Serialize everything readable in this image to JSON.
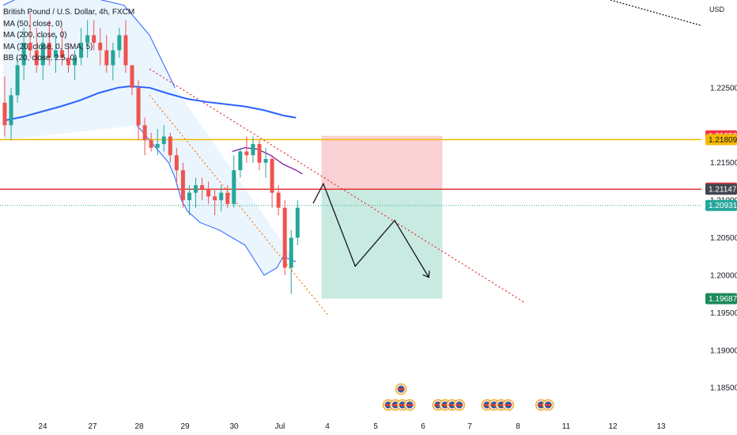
{
  "legend": {
    "symbol": "British Pound / U.S. Dollar, 4h, FXCM",
    "ma50": "MA (50, close, 0)",
    "ma200": "MA (200, close, 0)",
    "ma20": "MA (20, close, 0, SMA, 5)",
    "bb": "BB (20, close, 2.5, 0)"
  },
  "colors": {
    "up": "#26a69a",
    "down": "#ef5350",
    "ma200": "#2962ff",
    "bb": "#2962ff",
    "ma20": "#7b1fa2",
    "resistance": "#f5b800",
    "entry": "#e53935",
    "trend_red": "#e53935",
    "trend_orange": "#ff7f0e",
    "stop_zone": "#f8c9cd",
    "target_zone": "#bfe6dc"
  },
  "chart_data": {
    "type": "candlestick",
    "currency": "USD",
    "ylim": [
      1.1808,
      1.2367
    ],
    "y_ticks": [
      "1.22500",
      "1.21500",
      "1.21000",
      "1.20500",
      "1.20000",
      "1.19500",
      "1.19000",
      "1.18500"
    ],
    "x_ticks": [
      "24",
      "27",
      "28",
      "29",
      "30",
      "Jul",
      "4",
      "5",
      "6",
      "7",
      "8",
      "11",
      "12",
      "13"
    ],
    "price_tags": [
      {
        "label": "1.21859",
        "value": 1.21859,
        "color": "#f23645"
      },
      {
        "label": "1.21809",
        "value": 1.21809,
        "color": "#f5b800"
      },
      {
        "label": "1.21163",
        "value": 1.21163,
        "color": "#f23645"
      },
      {
        "label": "1.21147",
        "value": 1.21147,
        "color": "#434651"
      },
      {
        "label": "1.20931",
        "value": 1.20931,
        "color": "#26a69a"
      },
      {
        "label": "1.19687",
        "value": 1.19687,
        "color": "#1b8a5a"
      }
    ],
    "candles": [
      [
        1.223,
        1.2265,
        1.2185,
        1.22
      ],
      [
        1.22,
        1.225,
        1.218,
        1.224
      ],
      [
        1.224,
        1.229,
        1.223,
        1.228
      ],
      [
        1.228,
        1.233,
        1.226,
        1.231
      ],
      [
        1.231,
        1.235,
        1.229,
        1.23
      ],
      [
        1.23,
        1.233,
        1.227,
        1.228
      ],
      [
        1.228,
        1.232,
        1.226,
        1.231
      ],
      [
        1.231,
        1.234,
        1.228,
        1.229
      ],
      [
        1.229,
        1.232,
        1.227,
        1.23
      ],
      [
        1.23,
        1.233,
        1.228,
        1.229
      ],
      [
        1.229,
        1.231,
        1.227,
        1.228
      ],
      [
        1.228,
        1.23,
        1.226,
        1.229
      ],
      [
        1.229,
        1.233,
        1.228,
        1.231
      ],
      [
        1.231,
        1.234,
        1.229,
        1.232
      ],
      [
        1.232,
        1.234,
        1.23,
        1.231
      ],
      [
        1.231,
        1.233,
        1.228,
        1.23
      ],
      [
        1.23,
        1.232,
        1.227,
        1.228
      ],
      [
        1.228,
        1.231,
        1.226,
        1.23
      ],
      [
        1.23,
        1.233,
        1.229,
        1.232
      ],
      [
        1.232,
        1.234,
        1.227,
        1.228
      ],
      [
        1.228,
        1.228,
        1.224,
        1.225
      ],
      [
        1.225,
        1.226,
        1.218,
        1.22
      ],
      [
        1.22,
        1.221,
        1.216,
        1.218
      ],
      [
        1.218,
        1.219,
        1.2165,
        1.217
      ],
      [
        1.217,
        1.2195,
        1.216,
        1.2175
      ],
      [
        1.2175,
        1.22,
        1.2165,
        1.2185
      ],
      [
        1.2185,
        1.219,
        1.215,
        1.216
      ],
      [
        1.216,
        1.217,
        1.212,
        1.214
      ],
      [
        1.214,
        1.215,
        1.209,
        1.21
      ],
      [
        1.21,
        1.212,
        1.208,
        1.211
      ],
      [
        1.211,
        1.213,
        1.209,
        1.212
      ],
      [
        1.212,
        1.213,
        1.21,
        1.2115
      ],
      [
        1.2115,
        1.2125,
        1.2095,
        1.2105
      ],
      [
        1.2105,
        1.2115,
        1.208,
        1.21
      ],
      [
        1.21,
        1.212,
        1.2085,
        1.211
      ],
      [
        1.211,
        1.212,
        1.209,
        1.2095
      ],
      [
        1.2095,
        1.216,
        1.209,
        1.214
      ],
      [
        1.214,
        1.217,
        1.213,
        1.2165
      ],
      [
        1.2165,
        1.2185,
        1.215,
        1.216
      ],
      [
        1.216,
        1.2185,
        1.215,
        1.2175
      ],
      [
        1.2175,
        1.218,
        1.214,
        1.215
      ],
      [
        1.215,
        1.217,
        1.213,
        1.2155
      ],
      [
        1.2155,
        1.216,
        1.209,
        1.211
      ],
      [
        1.211,
        1.212,
        1.208,
        1.209
      ],
      [
        1.209,
        1.21,
        1.2,
        1.201
      ],
      [
        1.201,
        1.206,
        1.1975,
        1.205
      ],
      [
        1.205,
        1.21,
        1.204,
        1.209
      ]
    ],
    "bollinger": {
      "upper": [
        [
          0,
          1.236
        ],
        [
          5,
          1.238
        ],
        [
          8,
          1.239
        ],
        [
          10,
          1.238
        ],
        [
          14,
          1.237
        ],
        [
          19,
          1.236
        ],
        [
          23,
          1.232
        ],
        [
          27,
          1.225
        ]
      ],
      "lower": [
        [
          21,
          1.22
        ],
        [
          24,
          1.217
        ],
        [
          26,
          1.215
        ],
        [
          27,
          1.213
        ],
        [
          28,
          1.21
        ],
        [
          29,
          1.2085
        ],
        [
          31,
          1.207
        ],
        [
          34,
          1.206
        ],
        [
          36,
          1.205
        ],
        [
          38,
          1.204
        ],
        [
          41,
          1.2
        ],
        [
          43,
          1.201
        ],
        [
          44,
          1.2025
        ],
        [
          45,
          1.2021
        ],
        [
          46,
          1.2018
        ]
      ]
    },
    "ma200": [
      [
        0,
        1.2206
      ],
      [
        3,
        1.2211
      ],
      [
        6,
        1.2218
      ],
      [
        9,
        1.2225
      ],
      [
        12,
        1.2233
      ],
      [
        15,
        1.2243
      ],
      [
        18,
        1.225
      ],
      [
        20,
        1.2252
      ],
      [
        23,
        1.225
      ],
      [
        26,
        1.2242
      ],
      [
        29,
        1.2235
      ],
      [
        32,
        1.2231
      ],
      [
        35,
        1.2228
      ],
      [
        38,
        1.2225
      ],
      [
        41,
        1.222
      ],
      [
        44,
        1.2213
      ],
      [
        46,
        1.221
      ]
    ],
    "ma20": [
      [
        36,
        1.2165
      ],
      [
        38,
        1.217
      ],
      [
        40,
        1.2168
      ],
      [
        42,
        1.216
      ],
      [
        44,
        1.2148
      ],
      [
        46,
        1.214
      ],
      [
        47,
        1.2135
      ]
    ],
    "lines": [
      {
        "name": "resistance",
        "style": "solid",
        "y": 1.21809
      },
      {
        "name": "entry",
        "style": "solid",
        "y": 1.21147
      },
      {
        "name": "current-price",
        "style": "dotted",
        "y": 1.20931
      },
      {
        "name": "red-trendline",
        "style": "dotted",
        "points": [
          [
            23,
            1.2275
          ],
          [
            82,
            1.1963
          ]
        ]
      },
      {
        "name": "orange-trendline",
        "style": "dotted",
        "points": [
          [
            23,
            1.224
          ],
          [
            51,
            1.1947
          ]
        ]
      }
    ],
    "position": {
      "entry": 1.21147,
      "stop": 1.21859,
      "target": 1.19687,
      "start_index": 50,
      "end_index": 69
    },
    "projection": [
      [
        48.7,
        1.2096
      ],
      [
        50.3,
        1.2122
      ],
      [
        55.3,
        1.2012
      ],
      [
        61.5,
        1.2073
      ],
      [
        66.8,
        1.1998
      ]
    ],
    "events": [
      {
        "index": 62.5,
        "count": 1,
        "stack": 1
      },
      {
        "index": 60.5,
        "count": 4,
        "stack": 0
      },
      {
        "index": 68.3,
        "count": 4,
        "stack": 0
      },
      {
        "index": 76,
        "count": 4,
        "stack": 0
      },
      {
        "index": 84.5,
        "count": 2,
        "stack": 0
      }
    ]
  }
}
